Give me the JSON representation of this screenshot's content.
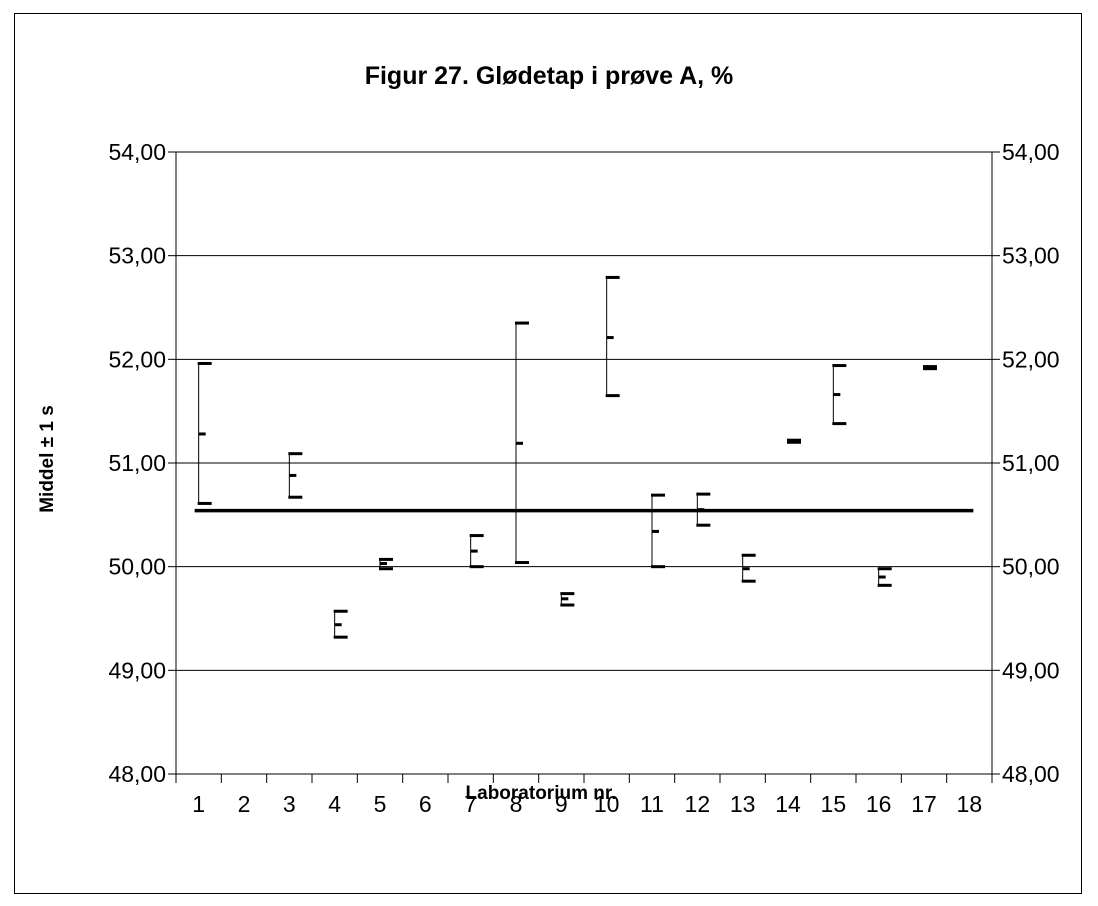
{
  "chart_data": {
    "type": "errorbar",
    "title": "Figur 27. Glødetap i prøve A, %",
    "xlabel": "Laboratorium nr.",
    "ylabel": "Middel ± 1 s",
    "ylim": [
      48,
      54
    ],
    "y_ticks": [
      "54,00",
      "53,00",
      "52,00",
      "51,00",
      "50,00",
      "49,00",
      "48,00"
    ],
    "y_tick_values": [
      54,
      53,
      52,
      51,
      50,
      49,
      48
    ],
    "categories": [
      "1",
      "2",
      "3",
      "4",
      "5",
      "6",
      "7",
      "8",
      "9",
      "10",
      "11",
      "12",
      "13",
      "14",
      "15",
      "16",
      "17",
      "18"
    ],
    "grid": true,
    "secondary_y_axis": true,
    "reference_line": 50.54,
    "series": [
      {
        "labs": [
          "1",
          "3",
          "4",
          "5",
          "7",
          "8",
          "10",
          "11",
          "12",
          "13",
          "14",
          "15",
          "16",
          "17",
          "18"
        ],
        "positions": [
          1,
          3,
          4,
          5,
          7,
          8,
          9,
          10,
          11,
          12,
          13,
          14,
          15,
          16,
          17
        ],
        "means": [
          51.28,
          50.88,
          49.44,
          50.03,
          50.15,
          51.19,
          49.69,
          52.21,
          50.34,
          50.55,
          49.98,
          51.21,
          51.66,
          49.9,
          51.92
        ],
        "upper": [
          51.96,
          51.09,
          49.57,
          50.07,
          50.3,
          52.35,
          49.74,
          52.79,
          50.69,
          50.7,
          50.11,
          51.22,
          51.94,
          49.98,
          51.93
        ],
        "lower": [
          50.61,
          50.67,
          49.32,
          49.98,
          50.0,
          50.04,
          49.63,
          51.65,
          50.0,
          50.4,
          49.86,
          51.2,
          51.38,
          49.82,
          51.91
        ]
      }
    ]
  }
}
